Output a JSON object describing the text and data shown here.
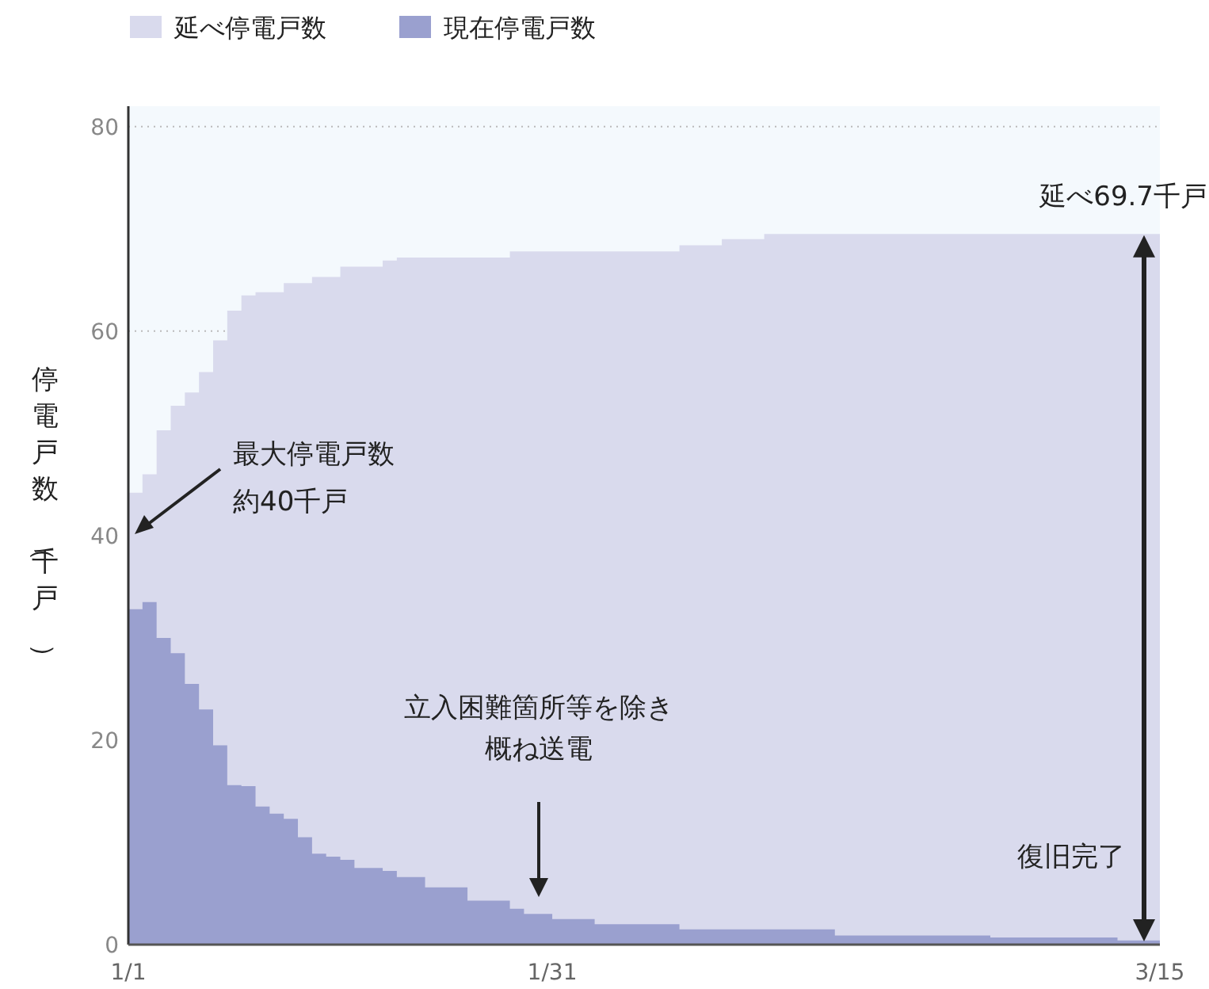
{
  "chart_data": {
    "type": "area",
    "ylabel": "停電戸数（千戸）",
    "xlim": [
      "--01-01",
      "--03-15"
    ],
    "xticks": [
      {
        "value": "--01-01",
        "label": "1/1"
      },
      {
        "value": "--01-31",
        "label": "1/31"
      },
      {
        "value": "--03-15",
        "label": "3/15"
      }
    ],
    "ylim": [
      0,
      82
    ],
    "yticks": [
      0,
      20,
      40,
      60,
      80
    ],
    "grid": "y",
    "legend": "top left",
    "series": [
      {
        "name": "延べ停電戸数",
        "color": "#d9daed",
        "x": [
          "--01-01",
          "--01-02",
          "--01-03",
          "--01-04",
          "--01-05",
          "--01-06",
          "--01-07",
          "--01-08",
          "--01-09",
          "--01-10",
          "--01-12",
          "--01-14",
          "--01-16",
          "--01-19",
          "--01-20",
          "--01-28",
          "--02-09",
          "--02-12",
          "--02-15",
          "--03-15"
        ],
        "values": [
          44.2,
          46.0,
          50.3,
          52.7,
          54.0,
          56.0,
          59.1,
          62.0,
          63.5,
          63.8,
          64.7,
          65.3,
          66.3,
          66.9,
          67.2,
          67.8,
          68.4,
          69.0,
          69.5,
          69.7
        ]
      },
      {
        "name": "現在停電戸数",
        "color": "#9aa0cf",
        "x": [
          "--01-01",
          "--01-02",
          "--01-03",
          "--01-04",
          "--01-05",
          "--01-06",
          "--01-07",
          "--01-08",
          "--01-09",
          "--01-10",
          "--01-11",
          "--01-12",
          "--01-13",
          "--01-14",
          "--01-15",
          "--01-16",
          "--01-17",
          "--01-19",
          "--01-20",
          "--01-22",
          "--01-25",
          "--01-28",
          "--01-29",
          "--01-31",
          "--02-03",
          "--02-09",
          "--02-20",
          "--03-03",
          "--03-12",
          "--03-15"
        ],
        "values": [
          32.8,
          33.5,
          30.0,
          28.5,
          25.5,
          23.0,
          19.5,
          15.6,
          15.5,
          13.5,
          12.8,
          12.3,
          10.5,
          8.9,
          8.6,
          8.3,
          7.5,
          7.2,
          6.6,
          5.6,
          4.3,
          3.5,
          3.0,
          2.5,
          2.0,
          1.5,
          0.9,
          0.7,
          0.4,
          0.2
        ]
      }
    ],
    "annotations": [
      "最大停電戸数約40千戸",
      "立入困難箇所等を除き概ね送電",
      {
        "text": "延べ69.7千戸",
        "x": "--03-15",
        "y": 69.7
      },
      {
        "text": "復旧完了",
        "x": "--03-15",
        "y": 0
      }
    ]
  }
}
